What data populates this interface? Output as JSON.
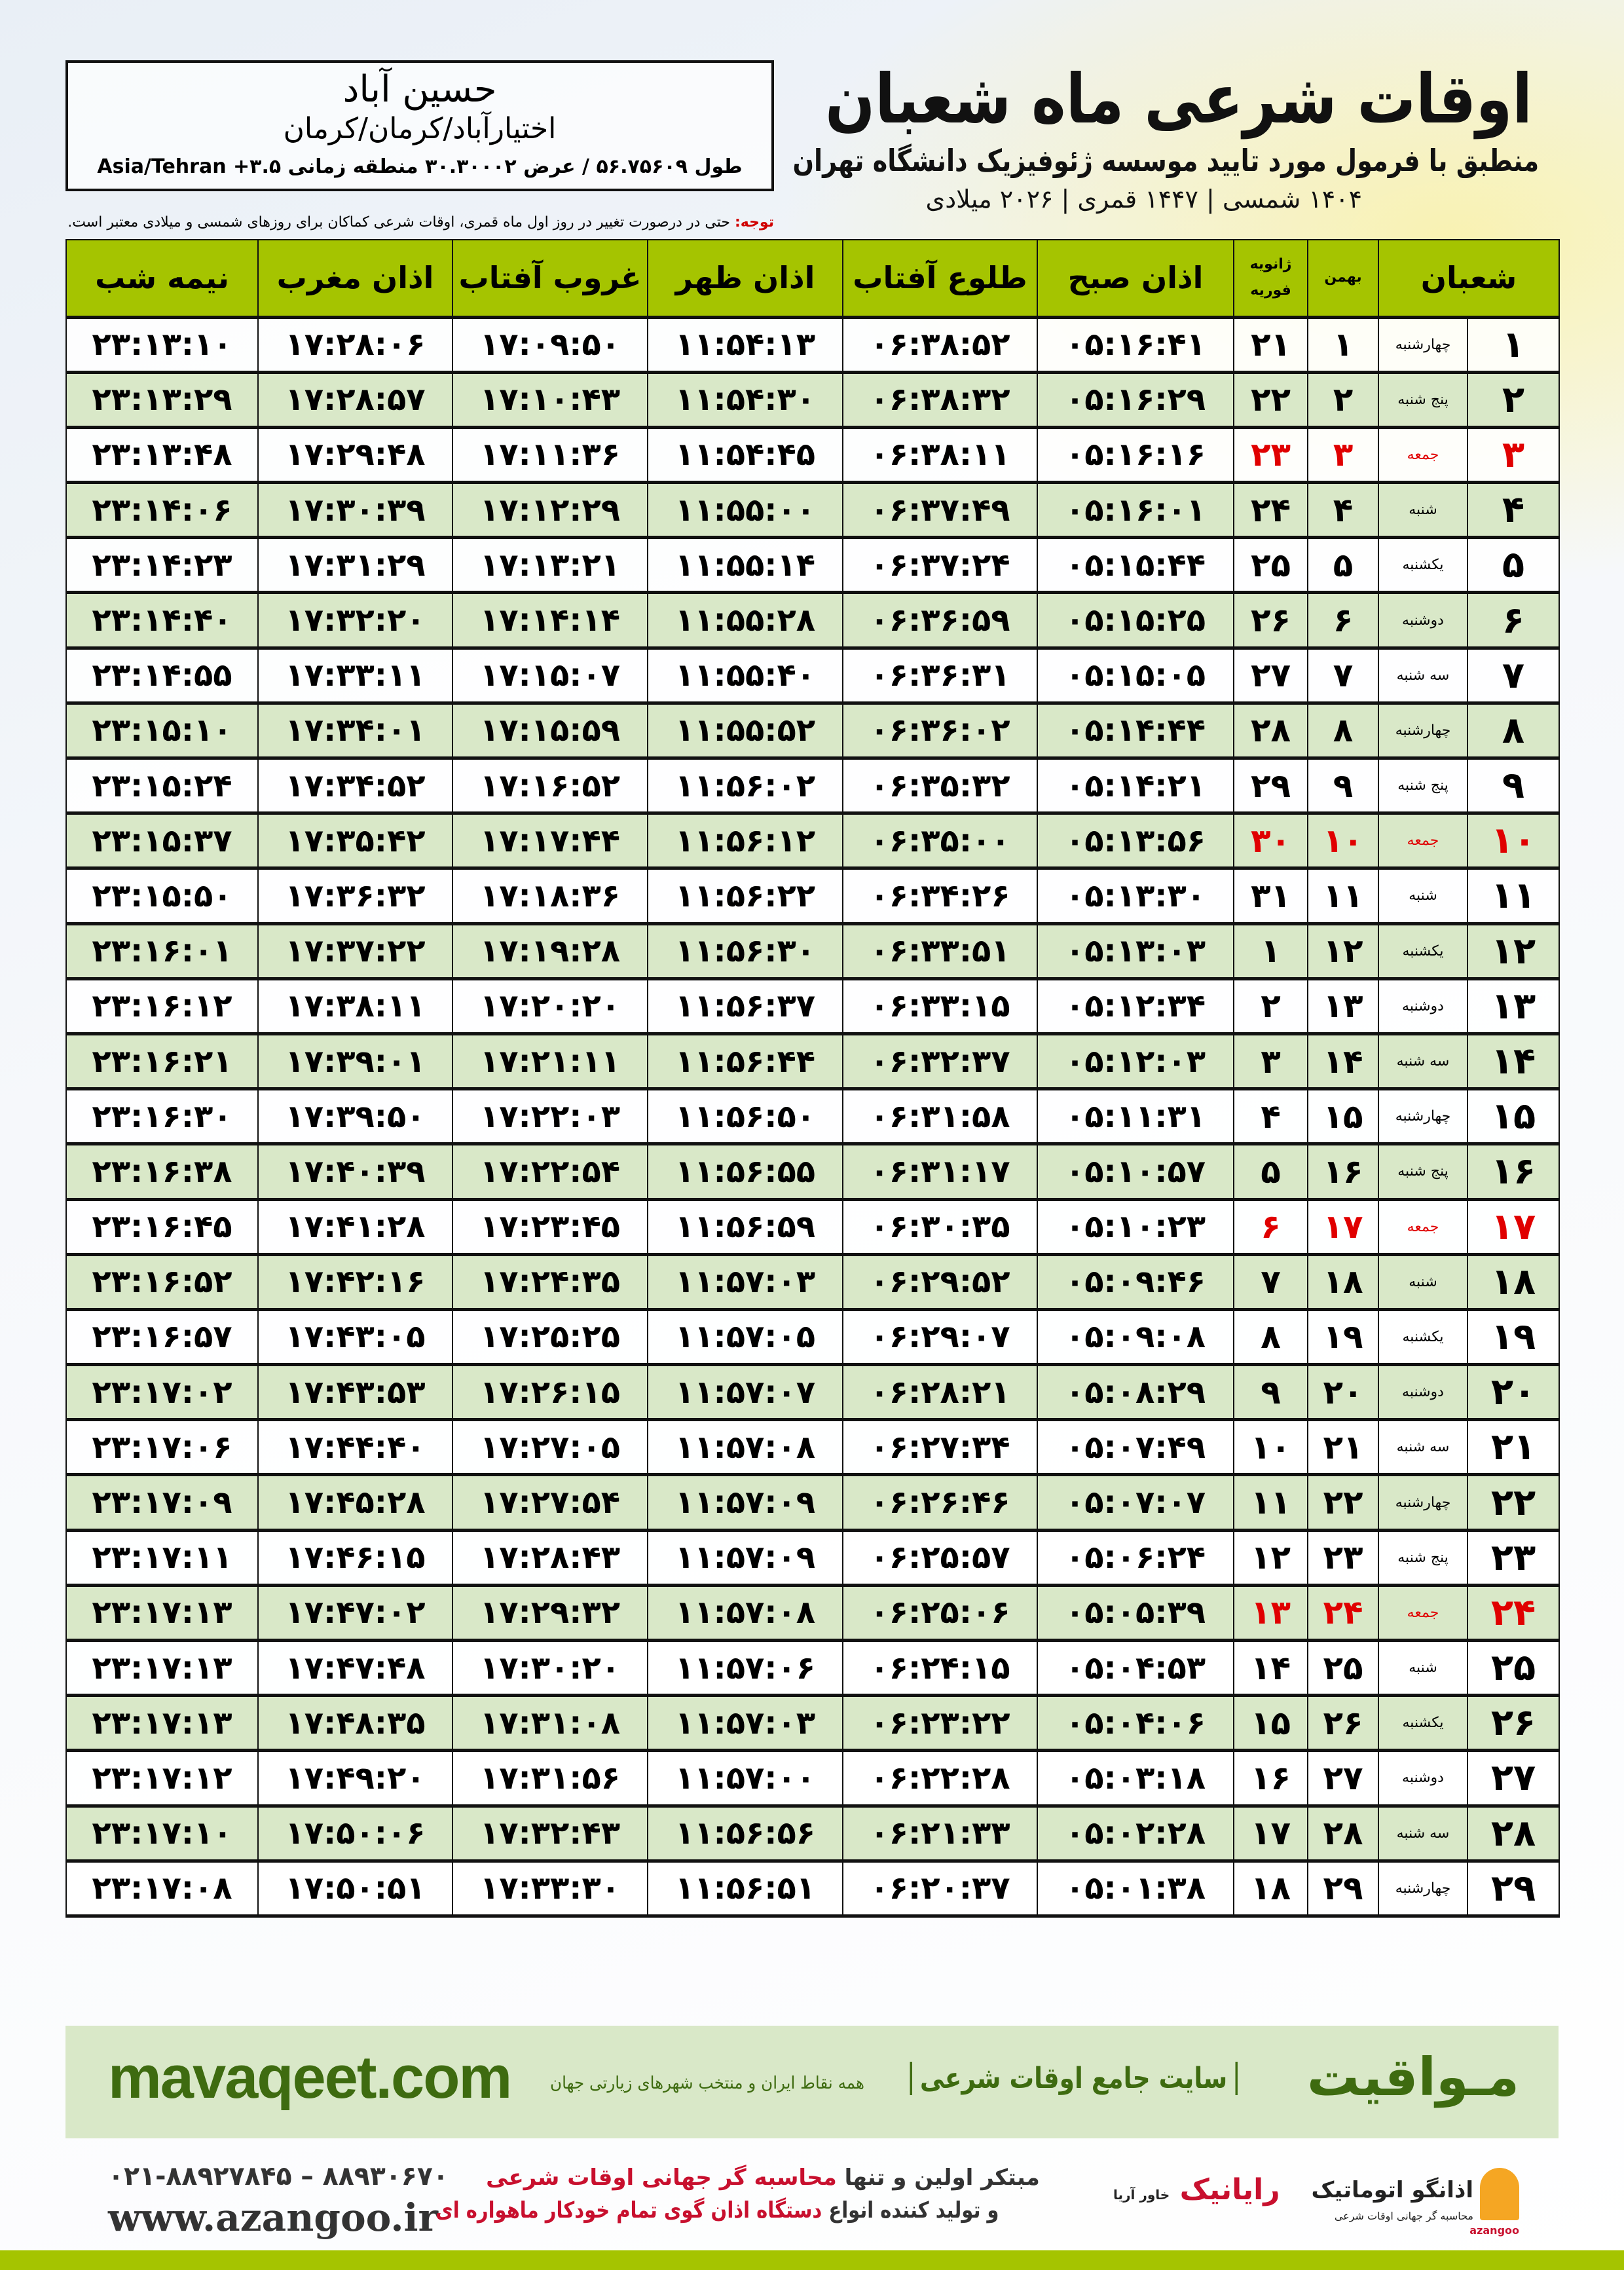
{
  "header": {
    "title": "اوقات شرعی ماه شعبان",
    "subtitle": "منطبق با فرمول مورد تایید موسسه ژئوفیزیک دانشگاه تهران",
    "dates": "۱۴۰۴ شمسی | ۱۴۴۷ قمری | ۲۰۲۶ میلادی"
  },
  "location": {
    "city": "حسین آباد",
    "path": "اختیارآباد/کرمان/کرمان",
    "geo": "طول ۵۶.۷۵۶۰۹ / عرض ۳۰.۳۰۰۰۲ منطقه زمانی ۳.۵+ Asia/Tehran"
  },
  "note": {
    "label": "توجه:",
    "text": " حتی در درصورت تغییر در روز اول ماه قمری، اوقات شرعی کماکان برای روزهای شمسی و میلادی معتبر است."
  },
  "table": {
    "headers": {
      "shaban": "شعبان",
      "bahman": "بهمن",
      "greg_top": "ژانویه",
      "greg_bottom": "فوریه",
      "fajr": "اذان صبح",
      "sunrise": "طلوع آفتاب",
      "dhuhr": "اذان ظهر",
      "sunset": "غروب آفتاب",
      "maghrib": "اذان مغرب",
      "midnight": "نیمه شب"
    },
    "rows": [
      [
        "۱",
        "چهارشنبه",
        "۱",
        "۲۱",
        "۰۵:۱۶:۴۱",
        "۰۶:۳۸:۵۲",
        "۱۱:۵۴:۱۳",
        "۱۷:۰۹:۵۰",
        "۱۷:۲۸:۰۶",
        "۲۳:۱۳:۱۰"
      ],
      [
        "۲",
        "پنج شنبه",
        "۲",
        "۲۲",
        "۰۵:۱۶:۲۹",
        "۰۶:۳۸:۳۲",
        "۱۱:۵۴:۳۰",
        "۱۷:۱۰:۴۳",
        "۱۷:۲۸:۵۷",
        "۲۳:۱۳:۲۹"
      ],
      [
        "۳",
        "جمعه",
        "۳",
        "۲۳",
        "۰۵:۱۶:۱۶",
        "۰۶:۳۸:۱۱",
        "۱۱:۵۴:۴۵",
        "۱۷:۱۱:۳۶",
        "۱۷:۲۹:۴۸",
        "۲۳:۱۳:۴۸"
      ],
      [
        "۴",
        "شنبه",
        "۴",
        "۲۴",
        "۰۵:۱۶:۰۱",
        "۰۶:۳۷:۴۹",
        "۱۱:۵۵:۰۰",
        "۱۷:۱۲:۲۹",
        "۱۷:۳۰:۳۹",
        "۲۳:۱۴:۰۶"
      ],
      [
        "۵",
        "یکشنبه",
        "۵",
        "۲۵",
        "۰۵:۱۵:۴۴",
        "۰۶:۳۷:۲۴",
        "۱۱:۵۵:۱۴",
        "۱۷:۱۳:۲۱",
        "۱۷:۳۱:۲۹",
        "۲۳:۱۴:۲۳"
      ],
      [
        "۶",
        "دوشنبه",
        "۶",
        "۲۶",
        "۰۵:۱۵:۲۵",
        "۰۶:۳۶:۵۹",
        "۱۱:۵۵:۲۸",
        "۱۷:۱۴:۱۴",
        "۱۷:۳۲:۲۰",
        "۲۳:۱۴:۴۰"
      ],
      [
        "۷",
        "سه شنبه",
        "۷",
        "۲۷",
        "۰۵:۱۵:۰۵",
        "۰۶:۳۶:۳۱",
        "۱۱:۵۵:۴۰",
        "۱۷:۱۵:۰۷",
        "۱۷:۳۳:۱۱",
        "۲۳:۱۴:۵۵"
      ],
      [
        "۸",
        "چهارشنبه",
        "۸",
        "۲۸",
        "۰۵:۱۴:۴۴",
        "۰۶:۳۶:۰۲",
        "۱۱:۵۵:۵۲",
        "۱۷:۱۵:۵۹",
        "۱۷:۳۴:۰۱",
        "۲۳:۱۵:۱۰"
      ],
      [
        "۹",
        "پنج شنبه",
        "۹",
        "۲۹",
        "۰۵:۱۴:۲۱",
        "۰۶:۳۵:۳۲",
        "۱۱:۵۶:۰۲",
        "۱۷:۱۶:۵۲",
        "۱۷:۳۴:۵۲",
        "۲۳:۱۵:۲۴"
      ],
      [
        "۱۰",
        "جمعه",
        "۱۰",
        "۳۰",
        "۰۵:۱۳:۵۶",
        "۰۶:۳۵:۰۰",
        "۱۱:۵۶:۱۲",
        "۱۷:۱۷:۴۴",
        "۱۷:۳۵:۴۲",
        "۲۳:۱۵:۳۷"
      ],
      [
        "۱۱",
        "شنبه",
        "۱۱",
        "۳۱",
        "۰۵:۱۳:۳۰",
        "۰۶:۳۴:۲۶",
        "۱۱:۵۶:۲۲",
        "۱۷:۱۸:۳۶",
        "۱۷:۳۶:۳۲",
        "۲۳:۱۵:۵۰"
      ],
      [
        "۱۲",
        "یکشنبه",
        "۱۲",
        "۱",
        "۰۵:۱۳:۰۳",
        "۰۶:۳۳:۵۱",
        "۱۱:۵۶:۳۰",
        "۱۷:۱۹:۲۸",
        "۱۷:۳۷:۲۲",
        "۲۳:۱۶:۰۱"
      ],
      [
        "۱۳",
        "دوشنبه",
        "۱۳",
        "۲",
        "۰۵:۱۲:۳۴",
        "۰۶:۳۳:۱۵",
        "۱۱:۵۶:۳۷",
        "۱۷:۲۰:۲۰",
        "۱۷:۳۸:۱۱",
        "۲۳:۱۶:۱۲"
      ],
      [
        "۱۴",
        "سه شنبه",
        "۱۴",
        "۳",
        "۰۵:۱۲:۰۳",
        "۰۶:۳۲:۳۷",
        "۱۱:۵۶:۴۴",
        "۱۷:۲۱:۱۱",
        "۱۷:۳۹:۰۱",
        "۲۳:۱۶:۲۱"
      ],
      [
        "۱۵",
        "چهارشنبه",
        "۱۵",
        "۴",
        "۰۵:۱۱:۳۱",
        "۰۶:۳۱:۵۸",
        "۱۱:۵۶:۵۰",
        "۱۷:۲۲:۰۳",
        "۱۷:۳۹:۵۰",
        "۲۳:۱۶:۳۰"
      ],
      [
        "۱۶",
        "پنج شنبه",
        "۱۶",
        "۵",
        "۰۵:۱۰:۵۷",
        "۰۶:۳۱:۱۷",
        "۱۱:۵۶:۵۵",
        "۱۷:۲۲:۵۴",
        "۱۷:۴۰:۳۹",
        "۲۳:۱۶:۳۸"
      ],
      [
        "۱۷",
        "جمعه",
        "۱۷",
        "۶",
        "۰۵:۱۰:۲۳",
        "۰۶:۳۰:۳۵",
        "۱۱:۵۶:۵۹",
        "۱۷:۲۳:۴۵",
        "۱۷:۴۱:۲۸",
        "۲۳:۱۶:۴۵"
      ],
      [
        "۱۸",
        "شنبه",
        "۱۸",
        "۷",
        "۰۵:۰۹:۴۶",
        "۰۶:۲۹:۵۲",
        "۱۱:۵۷:۰۳",
        "۱۷:۲۴:۳۵",
        "۱۷:۴۲:۱۶",
        "۲۳:۱۶:۵۲"
      ],
      [
        "۱۹",
        "یکشنبه",
        "۱۹",
        "۸",
        "۰۵:۰۹:۰۸",
        "۰۶:۲۹:۰۷",
        "۱۱:۵۷:۰۵",
        "۱۷:۲۵:۲۵",
        "۱۷:۴۳:۰۵",
        "۲۳:۱۶:۵۷"
      ],
      [
        "۲۰",
        "دوشنبه",
        "۲۰",
        "۹",
        "۰۵:۰۸:۲۹",
        "۰۶:۲۸:۲۱",
        "۱۱:۵۷:۰۷",
        "۱۷:۲۶:۱۵",
        "۱۷:۴۳:۵۳",
        "۲۳:۱۷:۰۲"
      ],
      [
        "۲۱",
        "سه شنبه",
        "۲۱",
        "۱۰",
        "۰۵:۰۷:۴۹",
        "۰۶:۲۷:۳۴",
        "۱۱:۵۷:۰۸",
        "۱۷:۲۷:۰۵",
        "۱۷:۴۴:۴۰",
        "۲۳:۱۷:۰۶"
      ],
      [
        "۲۲",
        "چهارشنبه",
        "۲۲",
        "۱۱",
        "۰۵:۰۷:۰۷",
        "۰۶:۲۶:۴۶",
        "۱۱:۵۷:۰۹",
        "۱۷:۲۷:۵۴",
        "۱۷:۴۵:۲۸",
        "۲۳:۱۷:۰۹"
      ],
      [
        "۲۳",
        "پنج شنبه",
        "۲۳",
        "۱۲",
        "۰۵:۰۶:۲۴",
        "۰۶:۲۵:۵۷",
        "۱۱:۵۷:۰۹",
        "۱۷:۲۸:۴۳",
        "۱۷:۴۶:۱۵",
        "۲۳:۱۷:۱۱"
      ],
      [
        "۲۴",
        "جمعه",
        "۲۴",
        "۱۳",
        "۰۵:۰۵:۳۹",
        "۰۶:۲۵:۰۶",
        "۱۱:۵۷:۰۸",
        "۱۷:۲۹:۳۲",
        "۱۷:۴۷:۰۲",
        "۲۳:۱۷:۱۳"
      ],
      [
        "۲۵",
        "شنبه",
        "۲۵",
        "۱۴",
        "۰۵:۰۴:۵۳",
        "۰۶:۲۴:۱۵",
        "۱۱:۵۷:۰۶",
        "۱۷:۳۰:۲۰",
        "۱۷:۴۷:۴۸",
        "۲۳:۱۷:۱۳"
      ],
      [
        "۲۶",
        "یکشنبه",
        "۲۶",
        "۱۵",
        "۰۵:۰۴:۰۶",
        "۰۶:۲۳:۲۲",
        "۱۱:۵۷:۰۳",
        "۱۷:۳۱:۰۸",
        "۱۷:۴۸:۳۵",
        "۲۳:۱۷:۱۳"
      ],
      [
        "۲۷",
        "دوشنبه",
        "۲۷",
        "۱۶",
        "۰۵:۰۳:۱۸",
        "۰۶:۲۲:۲۸",
        "۱۱:۵۷:۰۰",
        "۱۷:۳۱:۵۶",
        "۱۷:۴۹:۲۰",
        "۲۳:۱۷:۱۲"
      ],
      [
        "۲۸",
        "سه شنبه",
        "۲۸",
        "۱۷",
        "۰۵:۰۲:۲۸",
        "۰۶:۲۱:۳۳",
        "۱۱:۵۶:۵۶",
        "۱۷:۳۲:۴۳",
        "۱۷:۵۰:۰۶",
        "۲۳:۱۷:۱۰"
      ],
      [
        "۲۹",
        "چهارشنبه",
        "۲۹",
        "۱۸",
        "۰۵:۰۱:۳۸",
        "۰۶:۲۰:۳۷",
        "۱۱:۵۶:۵۱",
        "۱۷:۳۳:۳۰",
        "۱۷:۵۰:۵۱",
        "۲۳:۱۷:۰۸"
      ]
    ],
    "friday_label": "جمعه"
  },
  "footer": {
    "site_url": "mavaqeet.com",
    "brand": "مـواقیت",
    "site_desc": "سایت جامع اوقات شرعی",
    "coverage": "همه نقاط ایران و منتخب شهرهای زیارتی جهان",
    "phone": "۰۲۱-۸۸۹۲۷۸۴۵ – ۸۸۹۳۰۶۷۰",
    "web": "www.azangoo.ir",
    "promo_1a": "مبتکر اولین و تنها ",
    "promo_1b": "محاسبه گر جهانی اوقات شرعی",
    "promo_2a": "و تولید کننده انواع ",
    "promo_2b": "دستگاه اذان گوی تمام خودکار ماهواره ای",
    "logo_rayanik": "رایانیک",
    "logo_rayanik_sub": "خاور آریا",
    "logo_azangoo": "اذانگو اتوماتیک",
    "logo_azangoo_sub": "محاسبه گر جهانی اوقات شرعی",
    "logo_azangoo_en": "azangoo"
  },
  "colors": {
    "header_green": "#a5c400",
    "row_green": "#d9e8c8",
    "friday_red": "#e00000",
    "brand_green": "#3e6b10"
  }
}
